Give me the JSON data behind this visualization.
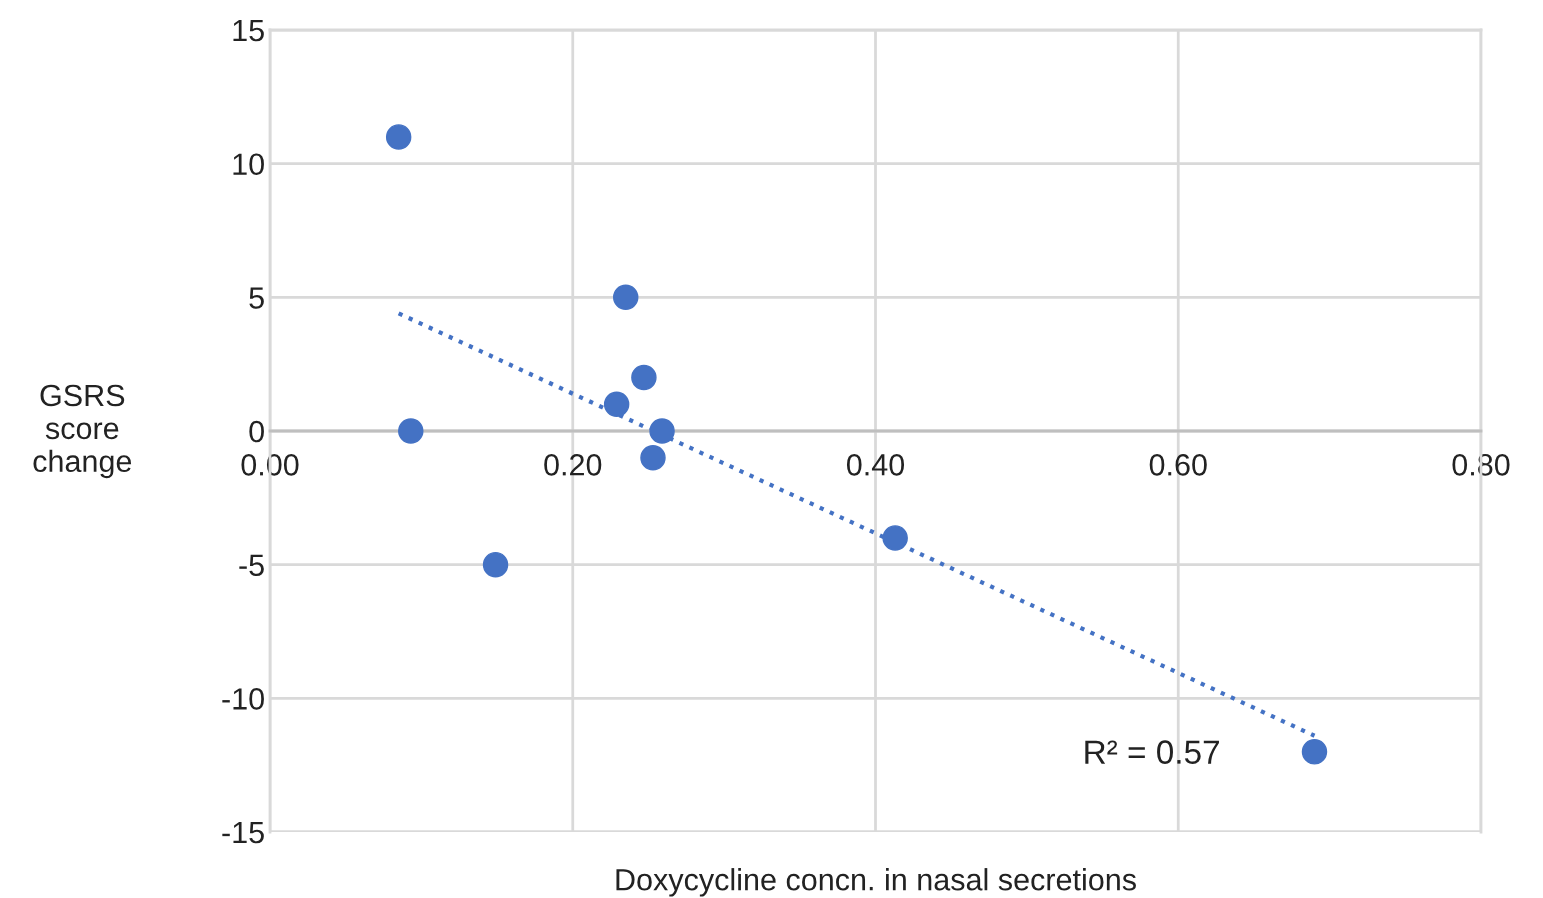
{
  "chart_data": {
    "type": "scatter",
    "xlabel": "Doxycycline concn. in nasal secretions",
    "ylabel": "GSRS\nscore\nchange",
    "xlim": [
      0,
      0.8
    ],
    "xticks": [
      {
        "value": 0,
        "label": "0.00"
      },
      {
        "value": 0.2,
        "label": "0.20"
      },
      {
        "value": 0.4,
        "label": "0.40"
      },
      {
        "value": 0.6,
        "label": "0.60"
      },
      {
        "value": 0.8,
        "label": "0.80"
      }
    ],
    "ylim": [
      -15,
      15
    ],
    "yticks": [
      -15,
      -10,
      -5,
      0,
      5,
      10,
      15
    ],
    "grid": true,
    "marker": "circle",
    "series": [
      {
        "color": "#4472c4",
        "x": [
          0.085,
          0.093,
          0.149,
          0.235,
          0.229,
          0.247,
          0.259,
          0.253,
          0.413,
          0.69
        ],
        "values": [
          11,
          0,
          -5,
          5,
          1,
          2,
          0,
          -1,
          -4,
          -12
        ]
      },
      {
        "type": "line",
        "color": "#4472c4",
        "line_style": "dotted",
        "marker": "none",
        "x": [
          0.085,
          0.69
        ],
        "values": [
          4.4,
          -11.4
        ]
      }
    ],
    "annotations": [
      "R² = 0.57"
    ]
  }
}
